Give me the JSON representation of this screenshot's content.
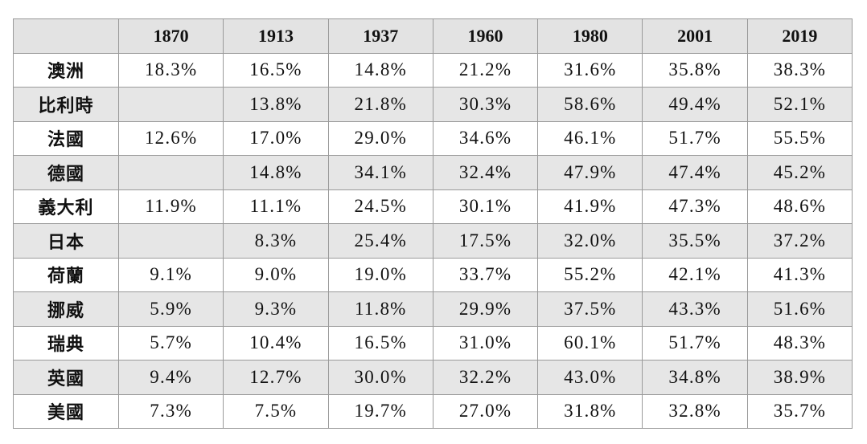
{
  "table": {
    "corner": "",
    "years": [
      "1870",
      "1913",
      "1937",
      "1960",
      "1980",
      "2001",
      "2019"
    ],
    "rows": [
      {
        "country": "澳洲",
        "values": [
          "18.3%",
          "16.5%",
          "14.8%",
          "21.2%",
          "31.6%",
          "35.8%",
          "38.3%"
        ]
      },
      {
        "country": "比利時",
        "values": [
          "",
          "13.8%",
          "21.8%",
          "30.3%",
          "58.6%",
          "49.4%",
          "52.1%"
        ]
      },
      {
        "country": "法國",
        "values": [
          "12.6%",
          "17.0%",
          "29.0%",
          "34.6%",
          "46.1%",
          "51.7%",
          "55.5%"
        ]
      },
      {
        "country": "德國",
        "values": [
          "",
          "14.8%",
          "34.1%",
          "32.4%",
          "47.9%",
          "47.4%",
          "45.2%"
        ]
      },
      {
        "country": "義大利",
        "values": [
          "11.9%",
          "11.1%",
          "24.5%",
          "30.1%",
          "41.9%",
          "47.3%",
          "48.6%"
        ]
      },
      {
        "country": "日本",
        "values": [
          "",
          "8.3%",
          "25.4%",
          "17.5%",
          "32.0%",
          "35.5%",
          "37.2%"
        ]
      },
      {
        "country": "荷蘭",
        "values": [
          "9.1%",
          "9.0%",
          "19.0%",
          "33.7%",
          "55.2%",
          "42.1%",
          "41.3%"
        ]
      },
      {
        "country": "挪威",
        "values": [
          "5.9%",
          "9.3%",
          "11.8%",
          "29.9%",
          "37.5%",
          "43.3%",
          "51.6%"
        ]
      },
      {
        "country": "瑞典",
        "values": [
          "5.7%",
          "10.4%",
          "16.5%",
          "31.0%",
          "60.1%",
          "51.7%",
          "48.3%"
        ]
      },
      {
        "country": "英國",
        "values": [
          "9.4%",
          "12.7%",
          "30.0%",
          "32.2%",
          "43.0%",
          "34.8%",
          "38.9%"
        ]
      },
      {
        "country": "美國",
        "values": [
          "7.3%",
          "7.5%",
          "19.7%",
          "27.0%",
          "31.8%",
          "32.8%",
          "35.7%"
        ]
      }
    ]
  }
}
